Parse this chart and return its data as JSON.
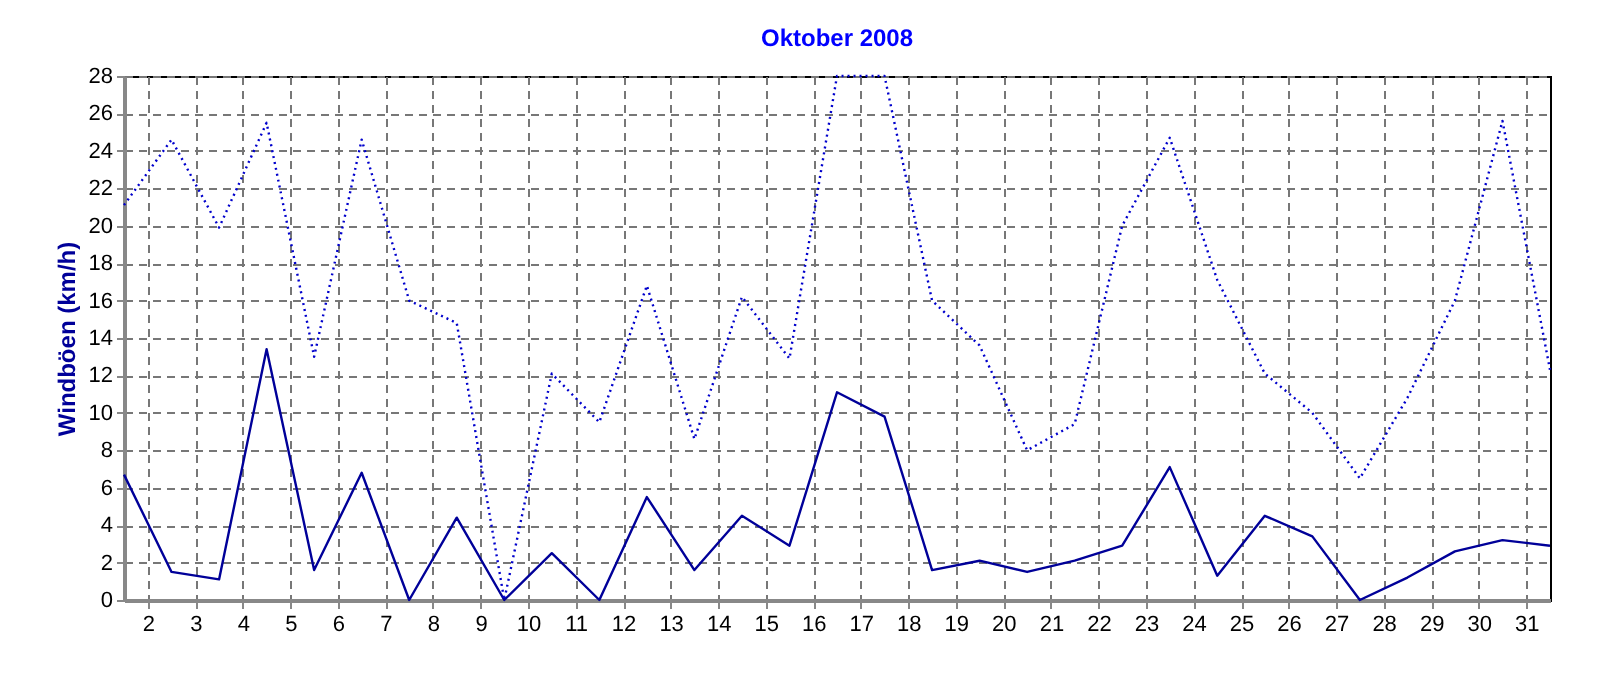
{
  "chart_data": {
    "type": "line",
    "title": "Oktober 2008",
    "ylabel": "Windböen  (km/h)",
    "x": [
      1.5,
      2.5,
      3.5,
      4.5,
      5.5,
      6.5,
      7.5,
      8.5,
      9.5,
      10.5,
      11.5,
      12.5,
      13.5,
      14.5,
      15.5,
      16.5,
      17.5,
      18.5,
      19.5,
      20.5,
      21.5,
      22.5,
      23.5,
      24.5,
      25.5,
      26.5,
      27.5,
      28.5,
      29.5,
      30.5,
      31.5
    ],
    "series": [
      {
        "color": "#000099",
        "line_style": "solid",
        "values": [
          6.7,
          1.5,
          1.1,
          13.4,
          1.6,
          6.8,
          0,
          4.4,
          0,
          2.5,
          0,
          5.5,
          1.6,
          4.5,
          2.9,
          11.1,
          9.8,
          1.6,
          2.1,
          1.5,
          2.1,
          2.9,
          7.1,
          1.3,
          4.5,
          3.4,
          0,
          1.2,
          2.6,
          3.2,
          2.9
        ]
      },
      {
        "color": "#0000cc",
        "line_style": "dotted",
        "values": [
          21.1,
          24.6,
          19.9,
          25.5,
          13.0,
          24.6,
          16.0,
          14.8,
          0,
          12.1,
          9.5,
          16.8,
          8.6,
          16.2,
          12.9,
          28,
          28,
          16.0,
          13.6,
          8.0,
          9.4,
          20.0,
          24.7,
          17.1,
          12.1,
          10.0,
          6.5,
          10.8,
          16.0,
          25.6,
          12.3
        ]
      }
    ],
    "xlim": [
      1.5,
      31.5
    ],
    "xticks": [
      2,
      3,
      4,
      5,
      6,
      7,
      8,
      9,
      10,
      11,
      12,
      13,
      14,
      15,
      16,
      17,
      18,
      19,
      20,
      21,
      22,
      23,
      24,
      25,
      26,
      27,
      28,
      29,
      30,
      31
    ],
    "ylim": [
      0,
      28
    ],
    "yticks": [
      0,
      2,
      4,
      6,
      8,
      10,
      12,
      14,
      16,
      18,
      20,
      22,
      24,
      26,
      28
    ],
    "grid": true,
    "marker": "none"
  }
}
